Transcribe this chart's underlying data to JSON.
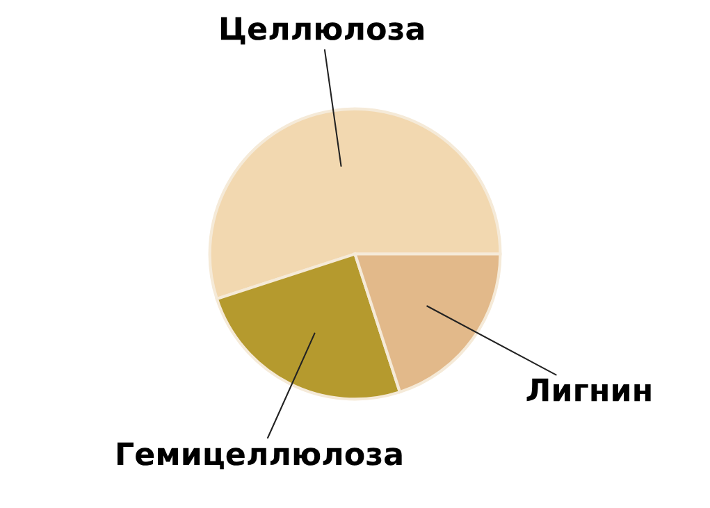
{
  "chart_data": {
    "type": "pie",
    "categories": [
      "Целлюлоза",
      "Гемицеллюлоза",
      "Лигнин"
    ],
    "values": [
      55,
      25,
      20
    ],
    "colors": [
      "#f2d8b0",
      "#b59a2e",
      "#e2b98a"
    ],
    "legend": false
  }
}
